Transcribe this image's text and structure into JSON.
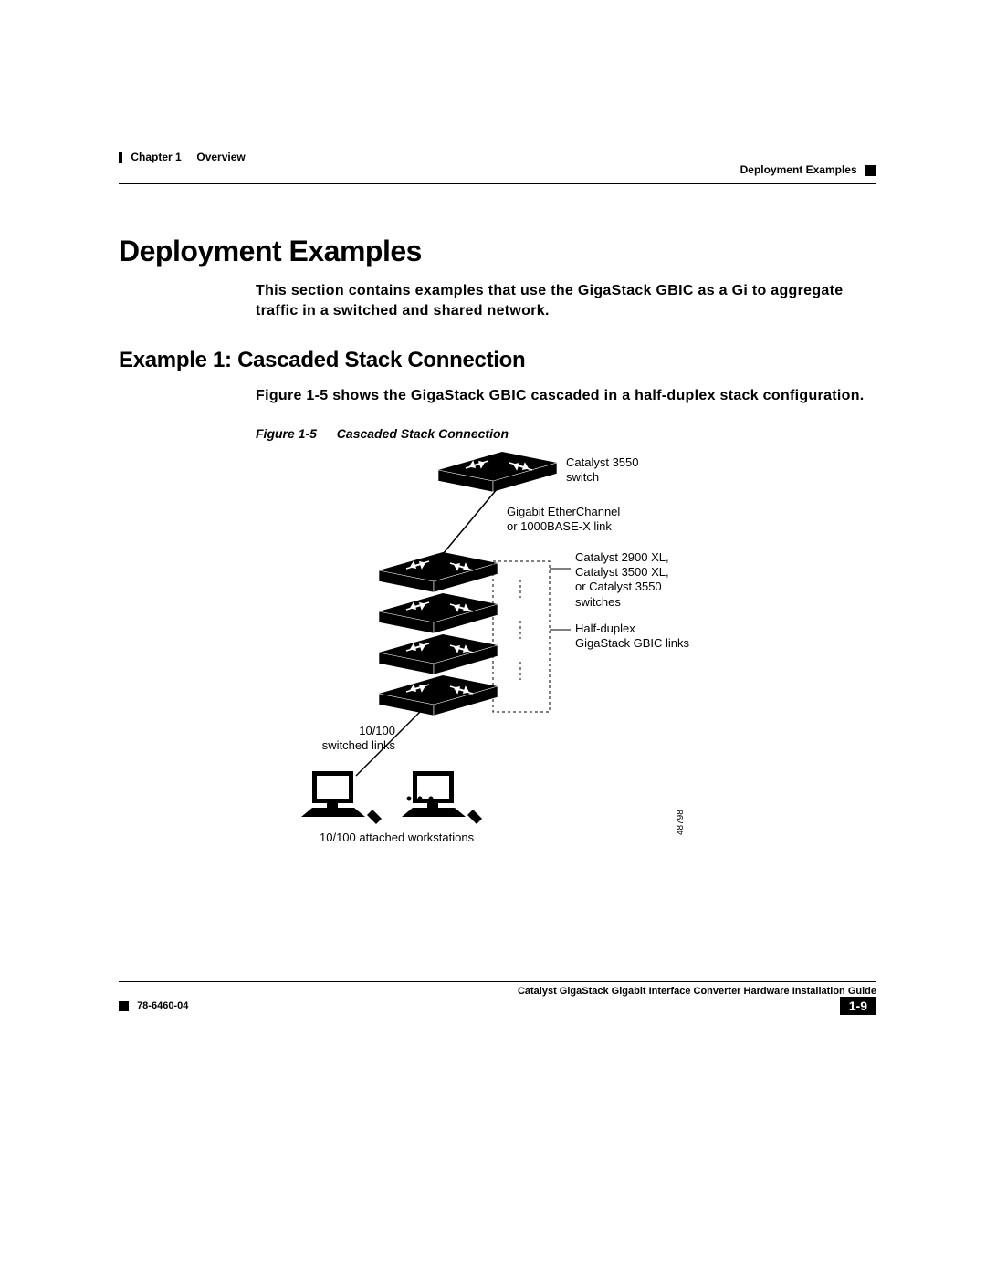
{
  "header": {
    "chapter": "Chapter 1",
    "title": "Overview",
    "section": "Deployment Examples"
  },
  "h1": "Deployment Examples",
  "intro": "This section contains examples that use the GigaStack GBIC as a Gi to aggregate traffic in a switched and shared network.",
  "h2": "Example 1: Cascaded Stack Connection",
  "example_text_a": "Figure 1-5",
  "example_text_b": "shows the GigaStack GBIC cascaded in a half-duplex stack configuration.",
  "figure": {
    "num": "Figure 1-5",
    "caption": "Cascaded Stack Connection",
    "id": "48798"
  },
  "diagram": {
    "type": "network-diagram",
    "colors": {
      "fill": "#000000",
      "stroke": "#000000",
      "bg": "#ffffff"
    },
    "labels": {
      "top_switch": "Catalyst 3550\nswitch",
      "uplink": "Gigabit EtherChannel\nor 1000BASE-X link",
      "stack_switches": "Catalyst 2900 XL,\nCatalyst 3500 XL,\nor Catalyst 3550\nswitches",
      "gbic_links": "Half-duplex\nGigaStack GBIC links",
      "switched_links": "10/100\nswitched links",
      "workstations": "10/100 attached workstations"
    },
    "switch_positions_y": [
      0,
      110,
      155,
      200,
      245
    ],
    "workstation_x": [
      50,
      160
    ],
    "font_size": 13
  },
  "footer": {
    "book": "Catalyst GigaStack Gigabit Interface Converter Hardware Installation Guide",
    "docnum": "78-6460-04",
    "page": "1-9"
  }
}
